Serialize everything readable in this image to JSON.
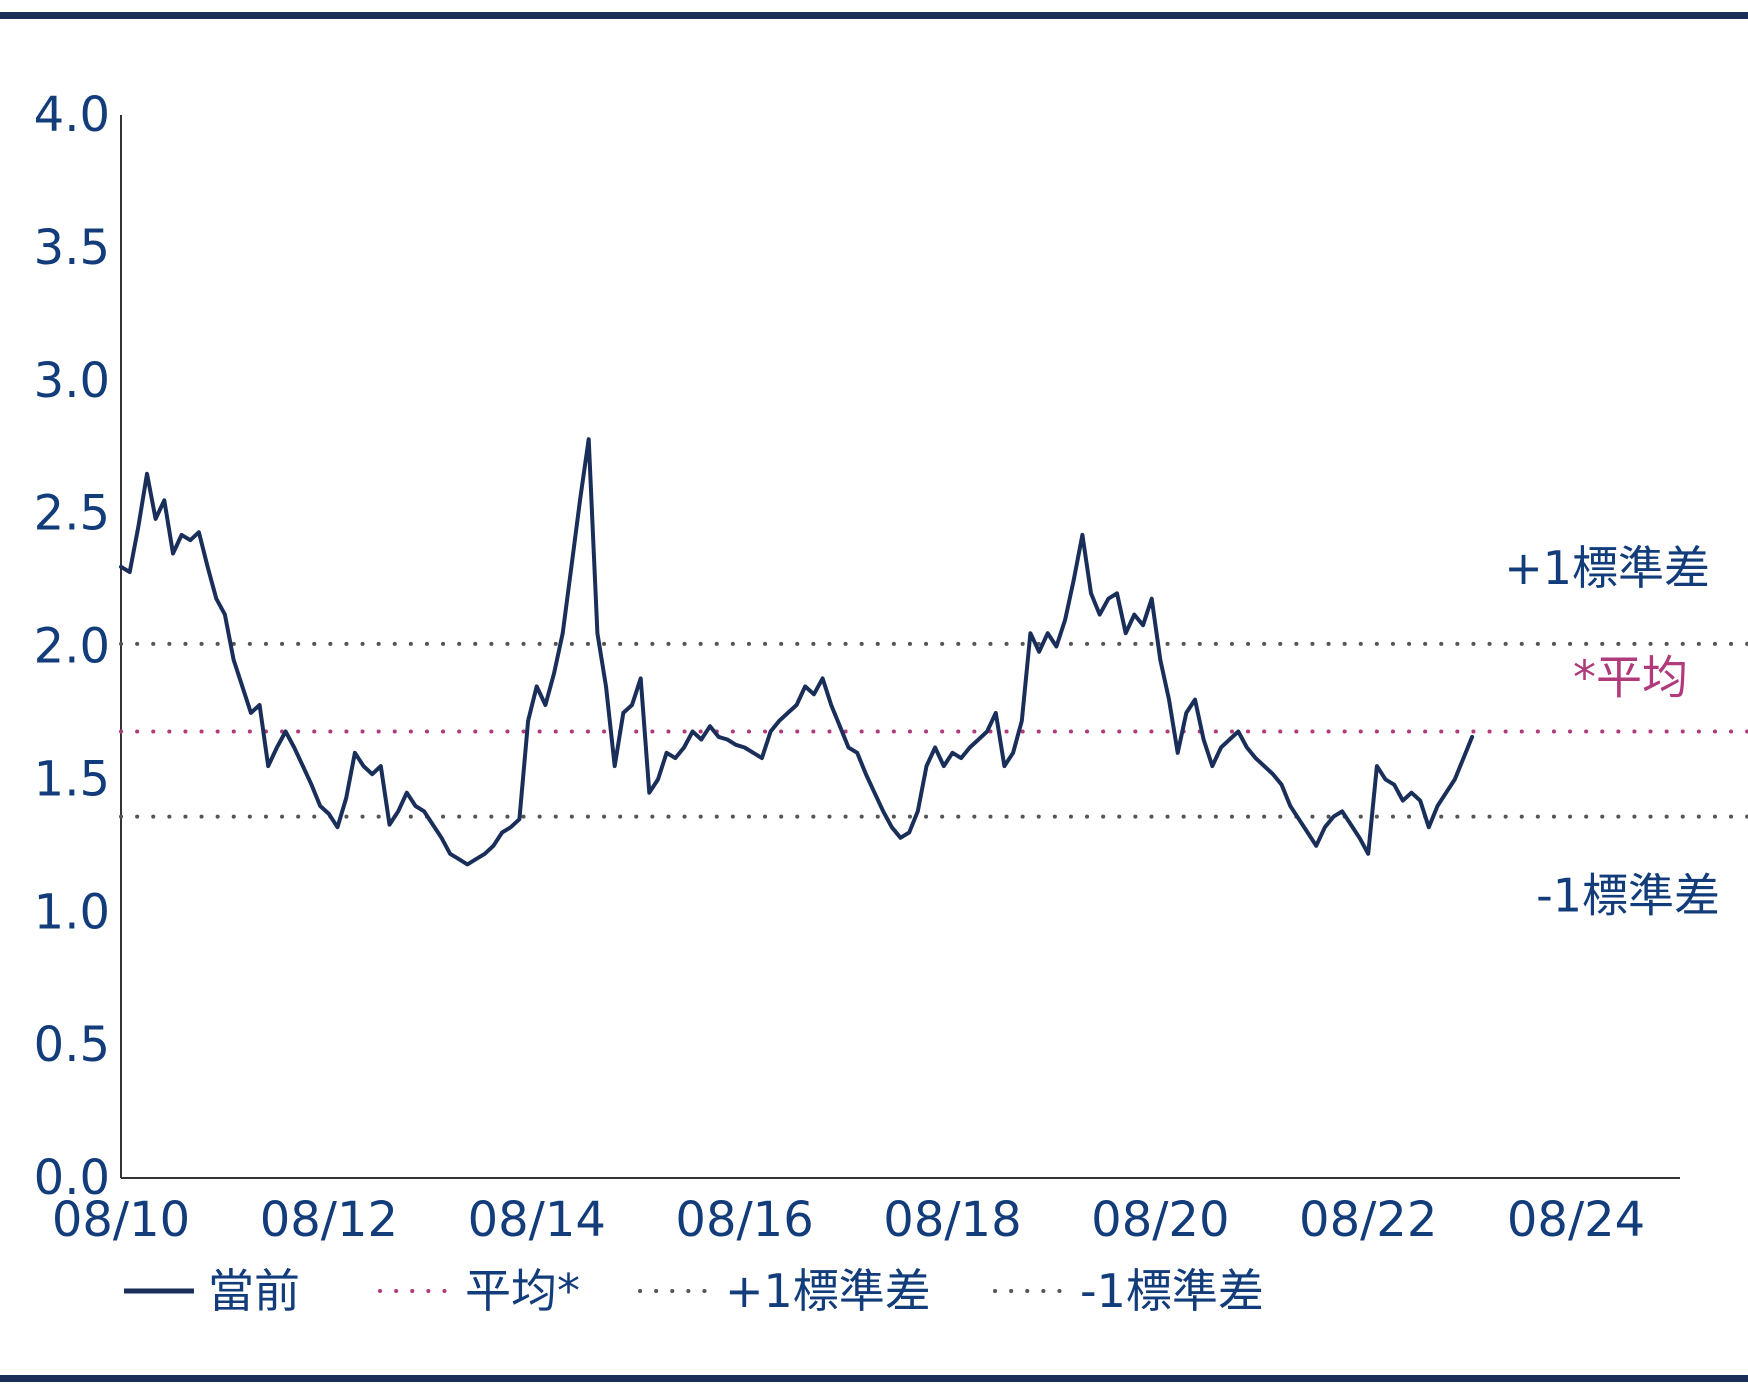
{
  "chart_data": {
    "type": "line",
    "xlim": [
      "2010-08",
      "2025-08"
    ],
    "ylim": [
      0,
      4
    ],
    "y_ticks": [
      "0.0",
      "0.5",
      "1.0",
      "1.5",
      "2.0",
      "2.5",
      "3.0",
      "3.5",
      "4.0"
    ],
    "x_ticks": [
      {
        "label": "08/10",
        "date": "2010-08"
      },
      {
        "label": "08/12",
        "date": "2012-08"
      },
      {
        "label": "08/14",
        "date": "2014-08"
      },
      {
        "label": "08/16",
        "date": "2016-08"
      },
      {
        "label": "08/18",
        "date": "2018-08"
      },
      {
        "label": "08/20",
        "date": "2020-08"
      },
      {
        "label": "08/22",
        "date": "2022-08"
      },
      {
        "label": "08/24",
        "date": "2024-08"
      }
    ],
    "series": [
      {
        "name": "當前",
        "color": "#1a2e5a",
        "points": [
          [
            "2010-08",
            2.3
          ],
          [
            "2010-09",
            2.28
          ],
          [
            "2010-10",
            2.45
          ],
          [
            "2010-11",
            2.65
          ],
          [
            "2010-12",
            2.48
          ],
          [
            "2011-01",
            2.55
          ],
          [
            "2011-02",
            2.35
          ],
          [
            "2011-03",
            2.42
          ],
          [
            "2011-04",
            2.4
          ],
          [
            "2011-05",
            2.43
          ],
          [
            "2011-06",
            2.3
          ],
          [
            "2011-07",
            2.18
          ],
          [
            "2011-08",
            2.12
          ],
          [
            "2011-09",
            1.95
          ],
          [
            "2011-10",
            1.85
          ],
          [
            "2011-11",
            1.75
          ],
          [
            "2011-12",
            1.78
          ],
          [
            "2012-01",
            1.55
          ],
          [
            "2012-02",
            1.62
          ],
          [
            "2012-03",
            1.68
          ],
          [
            "2012-04",
            1.62
          ],
          [
            "2012-05",
            1.55
          ],
          [
            "2012-06",
            1.48
          ],
          [
            "2012-07",
            1.4
          ],
          [
            "2012-08",
            1.37
          ],
          [
            "2012-09",
            1.32
          ],
          [
            "2012-10",
            1.43
          ],
          [
            "2012-11",
            1.6
          ],
          [
            "2012-12",
            1.55
          ],
          [
            "2013-01",
            1.52
          ],
          [
            "2013-02",
            1.55
          ],
          [
            "2013-03",
            1.33
          ],
          [
            "2013-04",
            1.38
          ],
          [
            "2013-05",
            1.45
          ],
          [
            "2013-06",
            1.4
          ],
          [
            "2013-07",
            1.38
          ],
          [
            "2013-08",
            1.33
          ],
          [
            "2013-09",
            1.28
          ],
          [
            "2013-10",
            1.22
          ],
          [
            "2013-11",
            1.2
          ],
          [
            "2013-12",
            1.18
          ],
          [
            "2014-01",
            1.2
          ],
          [
            "2014-02",
            1.22
          ],
          [
            "2014-03",
            1.25
          ],
          [
            "2014-04",
            1.3
          ],
          [
            "2014-05",
            1.32
          ],
          [
            "2014-06",
            1.35
          ],
          [
            "2014-07",
            1.72
          ],
          [
            "2014-08",
            1.85
          ],
          [
            "2014-09",
            1.78
          ],
          [
            "2014-10",
            1.9
          ],
          [
            "2014-11",
            2.05
          ],
          [
            "2014-12",
            2.3
          ],
          [
            "2015-01",
            2.55
          ],
          [
            "2015-02",
            2.78
          ],
          [
            "2015-03",
            2.05
          ],
          [
            "2015-04",
            1.85
          ],
          [
            "2015-05",
            1.55
          ],
          [
            "2015-06",
            1.75
          ],
          [
            "2015-07",
            1.78
          ],
          [
            "2015-08",
            1.88
          ],
          [
            "2015-09",
            1.45
          ],
          [
            "2015-10",
            1.5
          ],
          [
            "2015-11",
            1.6
          ],
          [
            "2015-12",
            1.58
          ],
          [
            "2016-01",
            1.62
          ],
          [
            "2016-02",
            1.68
          ],
          [
            "2016-03",
            1.65
          ],
          [
            "2016-04",
            1.7
          ],
          [
            "2016-05",
            1.66
          ],
          [
            "2016-06",
            1.65
          ],
          [
            "2016-07",
            1.63
          ],
          [
            "2016-08",
            1.62
          ],
          [
            "2016-09",
            1.6
          ],
          [
            "2016-10",
            1.58
          ],
          [
            "2016-11",
            1.68
          ],
          [
            "2016-12",
            1.72
          ],
          [
            "2017-01",
            1.75
          ],
          [
            "2017-02",
            1.78
          ],
          [
            "2017-03",
            1.85
          ],
          [
            "2017-04",
            1.82
          ],
          [
            "2017-05",
            1.88
          ],
          [
            "2017-06",
            1.78
          ],
          [
            "2017-07",
            1.7
          ],
          [
            "2017-08",
            1.62
          ],
          [
            "2017-09",
            1.6
          ],
          [
            "2017-10",
            1.52
          ],
          [
            "2017-11",
            1.45
          ],
          [
            "2017-12",
            1.38
          ],
          [
            "2018-01",
            1.32
          ],
          [
            "2018-02",
            1.28
          ],
          [
            "2018-03",
            1.3
          ],
          [
            "2018-04",
            1.38
          ],
          [
            "2018-05",
            1.55
          ],
          [
            "2018-06",
            1.62
          ],
          [
            "2018-07",
            1.55
          ],
          [
            "2018-08",
            1.6
          ],
          [
            "2018-09",
            1.58
          ],
          [
            "2018-10",
            1.62
          ],
          [
            "2018-11",
            1.65
          ],
          [
            "2018-12",
            1.68
          ],
          [
            "2019-01",
            1.75
          ],
          [
            "2019-02",
            1.55
          ],
          [
            "2019-03",
            1.6
          ],
          [
            "2019-04",
            1.72
          ],
          [
            "2019-05",
            2.05
          ],
          [
            "2019-06",
            1.98
          ],
          [
            "2019-07",
            2.05
          ],
          [
            "2019-08",
            2.0
          ],
          [
            "2019-09",
            2.1
          ],
          [
            "2019-10",
            2.25
          ],
          [
            "2019-11",
            2.42
          ],
          [
            "2019-12",
            2.2
          ],
          [
            "2020-01",
            2.12
          ],
          [
            "2020-02",
            2.18
          ],
          [
            "2020-03",
            2.2
          ],
          [
            "2020-04",
            2.05
          ],
          [
            "2020-05",
            2.12
          ],
          [
            "2020-06",
            2.08
          ],
          [
            "2020-07",
            2.18
          ],
          [
            "2020-08",
            1.95
          ],
          [
            "2020-09",
            1.8
          ],
          [
            "2020-10",
            1.6
          ],
          [
            "2020-11",
            1.75
          ],
          [
            "2020-12",
            1.8
          ],
          [
            "2021-01",
            1.65
          ],
          [
            "2021-02",
            1.55
          ],
          [
            "2021-03",
            1.62
          ],
          [
            "2021-04",
            1.65
          ],
          [
            "2021-05",
            1.68
          ],
          [
            "2021-06",
            1.62
          ],
          [
            "2021-07",
            1.58
          ],
          [
            "2021-08",
            1.55
          ],
          [
            "2021-09",
            1.52
          ],
          [
            "2021-10",
            1.48
          ],
          [
            "2021-11",
            1.4
          ],
          [
            "2021-12",
            1.35
          ],
          [
            "2022-01",
            1.3
          ],
          [
            "2022-02",
            1.25
          ],
          [
            "2022-03",
            1.32
          ],
          [
            "2022-04",
            1.36
          ],
          [
            "2022-05",
            1.38
          ],
          [
            "2022-06",
            1.33
          ],
          [
            "2022-07",
            1.28
          ],
          [
            "2022-08",
            1.22
          ],
          [
            "2022-09",
            1.55
          ],
          [
            "2022-10",
            1.5
          ],
          [
            "2022-11",
            1.48
          ],
          [
            "2022-12",
            1.42
          ],
          [
            "2023-01",
            1.45
          ],
          [
            "2023-02",
            1.42
          ],
          [
            "2023-03",
            1.32
          ],
          [
            "2023-04",
            1.4
          ],
          [
            "2023-05",
            1.45
          ],
          [
            "2023-06",
            1.5
          ],
          [
            "2023-07",
            1.58
          ],
          [
            "2023-08",
            1.66
          ]
        ]
      }
    ],
    "reference_lines": [
      {
        "key": "mean",
        "value": 1.68,
        "label": "*平均",
        "color": "#b03a7a",
        "style": "dotted"
      },
      {
        "key": "plus_1sd",
        "value": 2.01,
        "label": "+1標準差",
        "color": "#555555",
        "style": "dotted"
      },
      {
        "key": "minus_1sd",
        "value": 1.36,
        "label": "-1標準差",
        "color": "#555555",
        "style": "dotted"
      }
    ],
    "legend": [
      {
        "label": "當前",
        "style": "solid",
        "color": "#1a2e5a"
      },
      {
        "label": "平均*",
        "style": "dotted",
        "color": "#b03a7a"
      },
      {
        "label": "+1標準差",
        "style": "dotted",
        "color": "#555555"
      },
      {
        "label": "-1標準差",
        "style": "dotted",
        "color": "#555555"
      }
    ],
    "legend_position": "bottom-left",
    "grid": false,
    "text_color": "#123c7a",
    "frame_color": "#1a2e5a"
  }
}
